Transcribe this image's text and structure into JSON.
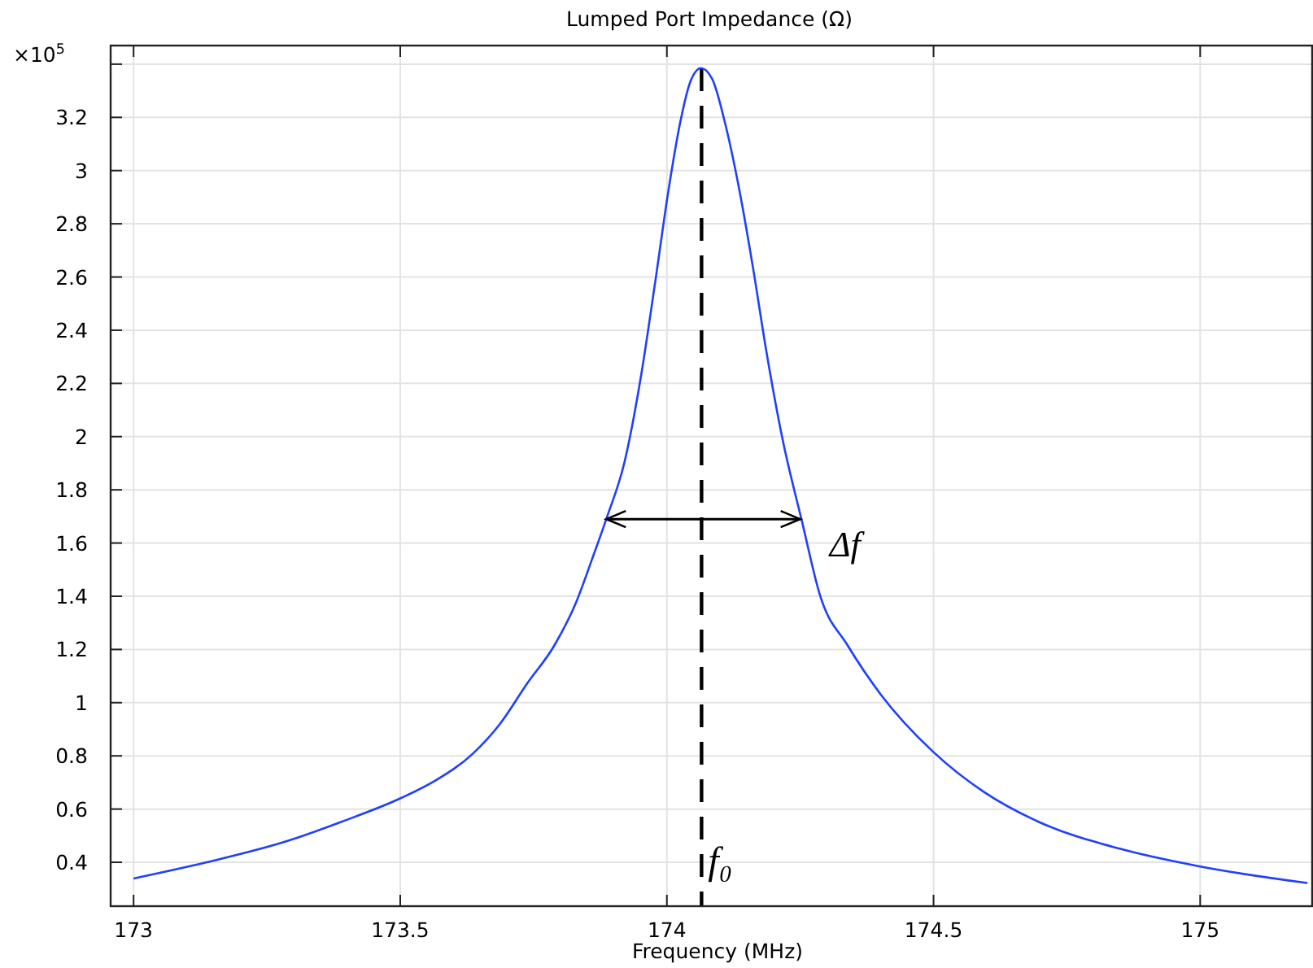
{
  "chart_data": {
    "type": "line",
    "title": "Lumped Port Impedance (Ω)",
    "xlabel": "Frequency (MHz)",
    "ylabel": "×10$^{5}$",
    "xlim": [
      172.957,
      175.21
    ],
    "ylim": [
      0.235,
      3.47
    ],
    "xticks": [
      173,
      173.5,
      174,
      174.5,
      175
    ],
    "yticks": [
      0.4,
      0.6,
      0.8,
      {
        "value": 1,
        "label": "1"
      },
      1.2,
      1.4,
      1.6,
      1.8,
      {
        "value": 2,
        "label": "2"
      },
      2.2,
      2.4,
      2.6,
      2.8,
      {
        "value": 3,
        "label": "3"
      },
      3.2,
      {
        "value": 3.4,
        "label": null
      }
    ],
    "grid": true,
    "marker": "none",
    "line_style": "solid",
    "series": [
      {
        "color": "#1f3fff",
        "x": [
          173.0,
          173.137,
          173.29,
          173.391,
          173.5,
          173.565,
          173.636,
          173.687,
          173.738,
          173.789,
          173.83,
          173.86,
          173.886,
          173.921,
          173.952,
          173.978,
          174.003,
          174.024,
          174.044,
          174.064,
          174.085,
          174.11,
          174.136,
          174.161,
          174.187,
          174.217,
          174.253,
          174.288,
          174.339,
          174.401,
          174.5,
          174.594,
          174.696,
          174.849,
          175.0,
          175.201
        ],
        "values": [
          0.339,
          0.4,
          0.481,
          0.553,
          0.64,
          0.706,
          0.808,
          0.92,
          1.072,
          1.215,
          1.378,
          1.541,
          1.688,
          1.908,
          2.234,
          2.58,
          2.926,
          3.171,
          3.334,
          3.385,
          3.344,
          3.171,
          2.926,
          2.641,
          2.315,
          1.989,
          1.684,
          1.398,
          1.215,
          1.031,
          0.814,
          0.665,
          0.553,
          0.451,
          0.384,
          0.322
        ]
      }
    ],
    "ref_lines": [
      {
        "axis": "x",
        "value": 174.065,
        "label": "f₀",
        "color": "#000000",
        "line_style": "dashed"
      }
    ],
    "annotations": [
      {
        "text": "Δf",
        "x": 174.25,
        "y": 1.69
      }
    ]
  }
}
